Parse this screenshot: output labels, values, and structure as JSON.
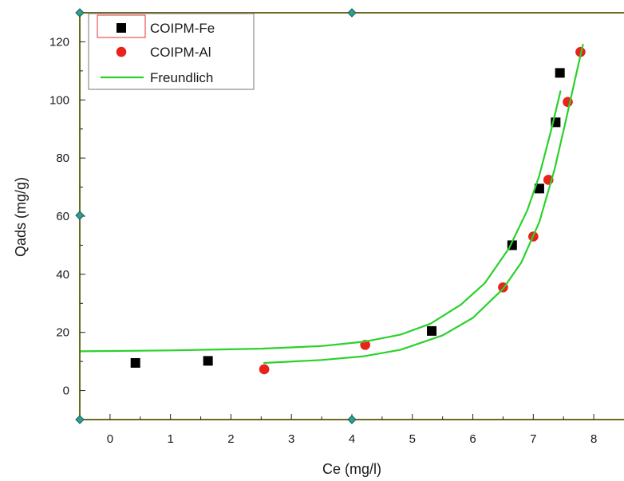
{
  "chart_data": {
    "type": "scatter",
    "xlabel": "Ce (mg/l)",
    "ylabel": "Qads (mg/g)",
    "xlim": [
      -0.5,
      8.5
    ],
    "ylim": [
      -10,
      130
    ],
    "xticks": [
      0,
      1,
      2,
      3,
      4,
      5,
      6,
      7,
      8
    ],
    "yticks": [
      0,
      20,
      40,
      60,
      80,
      100,
      120
    ],
    "grid": false,
    "legend_position": "top-left",
    "series": [
      {
        "name": "COIPM-Fe",
        "kind": "scatter",
        "marker": "square",
        "color": "#000000",
        "x": [
          0.42,
          1.62,
          5.32,
          6.65,
          7.1,
          7.37,
          7.44
        ],
        "y": [
          9.5,
          10.2,
          20.5,
          50.0,
          69.5,
          92.3,
          109.3
        ]
      },
      {
        "name": "COIPM-Al",
        "kind": "scatter",
        "marker": "circle",
        "color": "#e8231b",
        "x": [
          2.55,
          4.22,
          6.5,
          7.0,
          7.25,
          7.57,
          7.78
        ],
        "y": [
          7.3,
          15.7,
          35.5,
          53.0,
          72.5,
          99.3,
          116.5
        ]
      },
      {
        "name": "Freundlich",
        "kind": "line",
        "color": "#2bd12b",
        "x": [
          -0.5,
          1.0,
          2.5,
          3.5,
          4.2,
          4.8,
          5.3,
          5.8,
          6.2,
          6.6,
          6.9,
          7.1,
          7.3,
          7.45
        ],
        "y": [
          13.5,
          13.8,
          14.4,
          15.3,
          16.8,
          19.2,
          23.0,
          29.5,
          37.0,
          49.0,
          62.0,
          74.0,
          90.0,
          103.0
        ]
      },
      {
        "kind": "line",
        "color": "#2bd12b",
        "x": [
          2.55,
          3.5,
          4.2,
          4.8,
          5.5,
          6.0,
          6.5,
          6.8,
          7.1,
          7.35,
          7.55,
          7.7,
          7.82
        ],
        "y": [
          9.5,
          10.5,
          11.8,
          14.0,
          19.0,
          25.0,
          35.0,
          44.0,
          58.0,
          76.0,
          94.0,
          108.0,
          119.0
        ]
      }
    ]
  }
}
